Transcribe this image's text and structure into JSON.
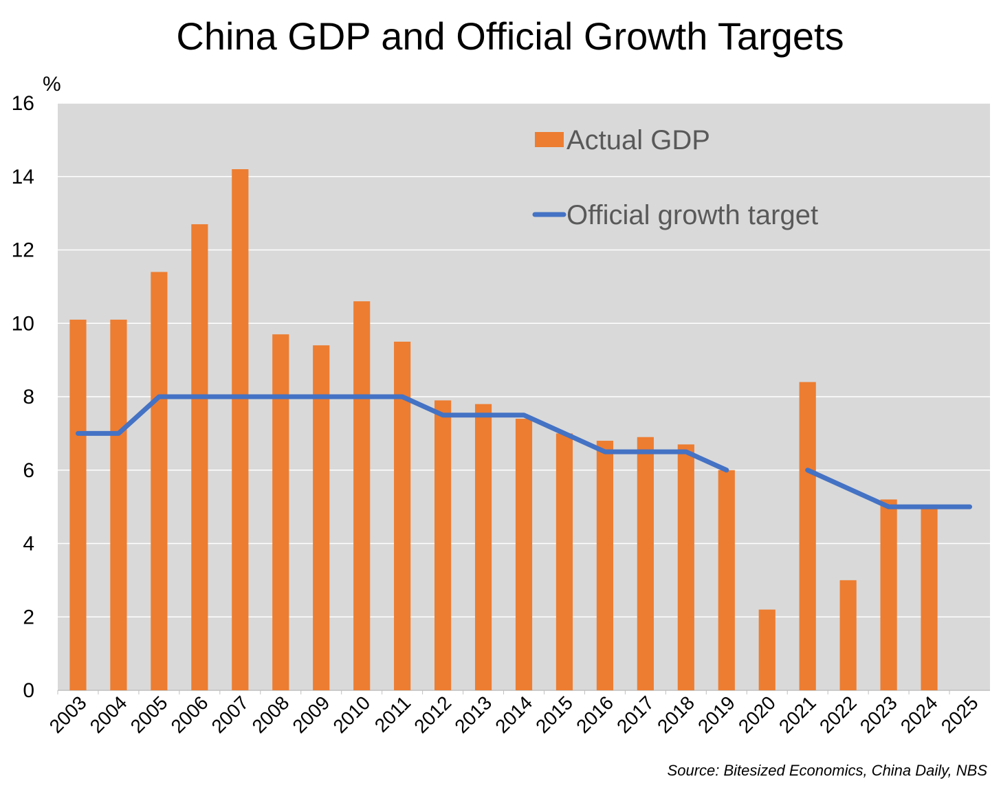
{
  "chart_data": {
    "type": "bar",
    "title": "China GDP and Official Growth Targets",
    "y_unit": "%",
    "ylim": [
      0,
      16
    ],
    "y_ticks": [
      0,
      2,
      4,
      6,
      8,
      10,
      12,
      14,
      16
    ],
    "grid": true,
    "legend_position": "top-right",
    "categories": [
      "2003",
      "2004",
      "2005",
      "2006",
      "2007",
      "2008",
      "2009",
      "2010",
      "2011",
      "2012",
      "2013",
      "2014",
      "2015",
      "2016",
      "2017",
      "2018",
      "2019",
      "2020",
      "2021",
      "2022",
      "2023",
      "2024",
      "2025"
    ],
    "series": [
      {
        "name": "Actual GDP",
        "kind": "bar",
        "color": "#ED7D31",
        "values": [
          10.1,
          10.1,
          11.4,
          12.7,
          14.2,
          9.7,
          9.4,
          10.6,
          9.5,
          7.9,
          7.8,
          7.4,
          7.0,
          6.8,
          6.9,
          6.7,
          6.0,
          2.2,
          8.4,
          3.0,
          5.2,
          5.0,
          null
        ]
      },
      {
        "name": "Official growth target",
        "kind": "line",
        "color": "#4472C4",
        "values": [
          7,
          7,
          8,
          8,
          8,
          8,
          8,
          8,
          8,
          7.5,
          7.5,
          7.5,
          7.0,
          6.5,
          6.5,
          6.5,
          6.0,
          null,
          6.0,
          5.5,
          5.0,
          5.0,
          5.0
        ]
      }
    ],
    "source": "Source: Bitesized Economics, China Daily, NBS"
  },
  "colors": {
    "plot_background": "#D9D9D9",
    "grid": "#FFFFFF",
    "text": "#000000",
    "legend_text": "#595959"
  }
}
